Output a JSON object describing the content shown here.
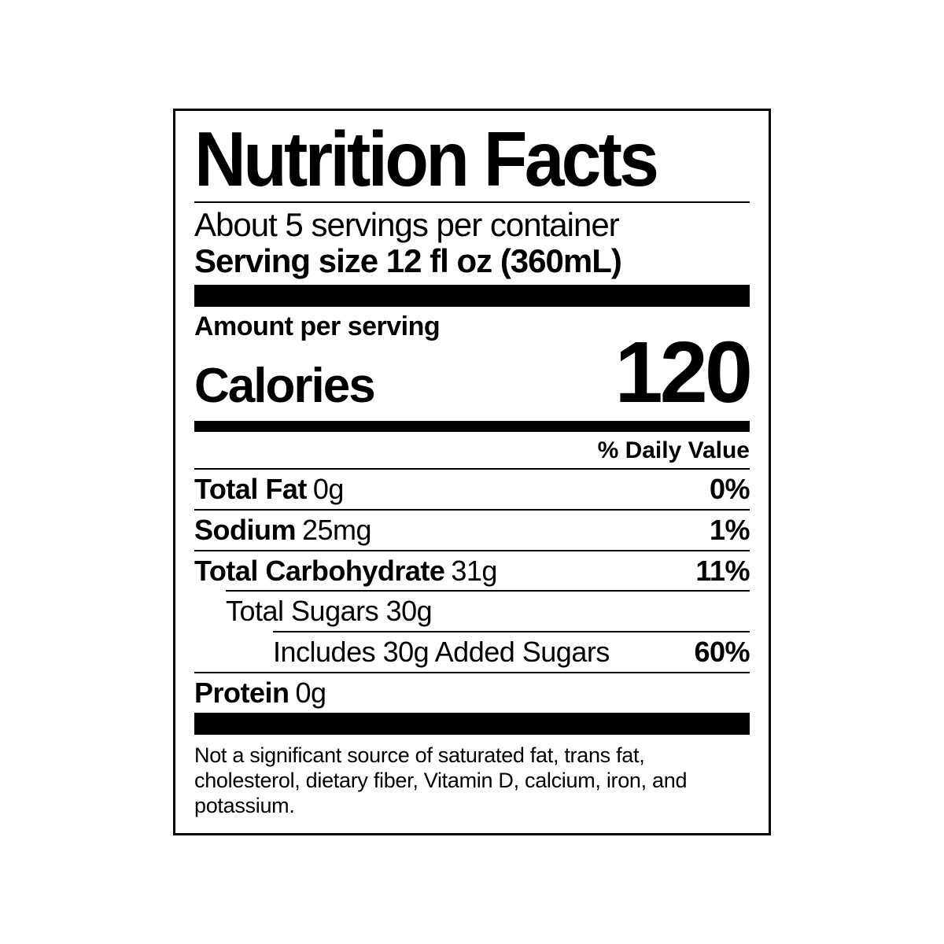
{
  "title": "Nutrition Facts",
  "servings_per_container": "About 5 servings per container",
  "serving_size": "Serving size 12 fl oz (360mL)",
  "amount_per_serving_label": "Amount per serving",
  "calories_label": "Calories",
  "calories_value": "120",
  "daily_value_header": "% Daily Value",
  "nutrients": {
    "total_fat": {
      "name": "Total Fat",
      "amount": "0g",
      "dv": "0%"
    },
    "sodium": {
      "name": "Sodium",
      "amount": "25mg",
      "dv": "1%"
    },
    "total_carb": {
      "name": "Total Carbohydrate",
      "amount": "31g",
      "dv": "11%"
    },
    "total_sugars": {
      "text": "Total Sugars 30g"
    },
    "added_sugars": {
      "text": "Includes 30g Added Sugars",
      "dv": "60%"
    },
    "protein": {
      "name": "Protein",
      "amount": "0g"
    }
  },
  "footnote": "Not a significant source of saturated fat, trans fat, cholesterol, dietary fiber, Vitamin D, calcium, iron, and potassium.",
  "colors": {
    "fg": "#000000",
    "bg": "#ffffff"
  }
}
